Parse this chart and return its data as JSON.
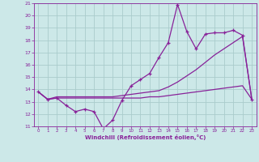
{
  "xlabel": "Windchill (Refroidissement éolien,°C)",
  "xlim": [
    -0.5,
    23.5
  ],
  "ylim": [
    11,
    21
  ],
  "yticks": [
    11,
    12,
    13,
    14,
    15,
    16,
    17,
    18,
    19,
    20,
    21
  ],
  "xticks": [
    0,
    1,
    2,
    3,
    4,
    5,
    6,
    7,
    8,
    9,
    10,
    11,
    12,
    13,
    14,
    15,
    16,
    17,
    18,
    19,
    20,
    21,
    22,
    23
  ],
  "background_color": "#cce8e8",
  "grid_color": "#aacccc",
  "line_color": "#882299",
  "series1_x": [
    0,
    1,
    2,
    3,
    4,
    5,
    6,
    7,
    8,
    9,
    10,
    11,
    12,
    13,
    14,
    15,
    16,
    17,
    18,
    19,
    20,
    21,
    22,
    23
  ],
  "series1_y": [
    13.8,
    13.2,
    13.3,
    12.7,
    12.2,
    12.4,
    12.2,
    10.8,
    11.5,
    13.1,
    14.3,
    14.8,
    15.3,
    16.6,
    17.8,
    20.9,
    18.7,
    17.3,
    18.5,
    18.6,
    18.6,
    18.8,
    18.4,
    13.2
  ],
  "series2_x": [
    0,
    1,
    2,
    3,
    4,
    5,
    6,
    7,
    8,
    9,
    10,
    11,
    12,
    13,
    14,
    15,
    16,
    17,
    18,
    19,
    20,
    21,
    22,
    23
  ],
  "series2_y": [
    13.8,
    13.2,
    13.4,
    13.4,
    13.4,
    13.4,
    13.4,
    13.4,
    13.4,
    13.5,
    13.6,
    13.7,
    13.8,
    13.9,
    14.2,
    14.6,
    15.1,
    15.6,
    16.2,
    16.8,
    17.3,
    17.8,
    18.3,
    13.2
  ],
  "series3_x": [
    0,
    1,
    2,
    3,
    4,
    5,
    6,
    7,
    8,
    9,
    10,
    11,
    12,
    13,
    14,
    15,
    16,
    17,
    18,
    19,
    20,
    21,
    22,
    23
  ],
  "series3_y": [
    13.8,
    13.2,
    13.3,
    13.3,
    13.3,
    13.3,
    13.3,
    13.3,
    13.3,
    13.3,
    13.3,
    13.3,
    13.4,
    13.4,
    13.5,
    13.6,
    13.7,
    13.8,
    13.9,
    14.0,
    14.1,
    14.2,
    14.3,
    13.2
  ]
}
